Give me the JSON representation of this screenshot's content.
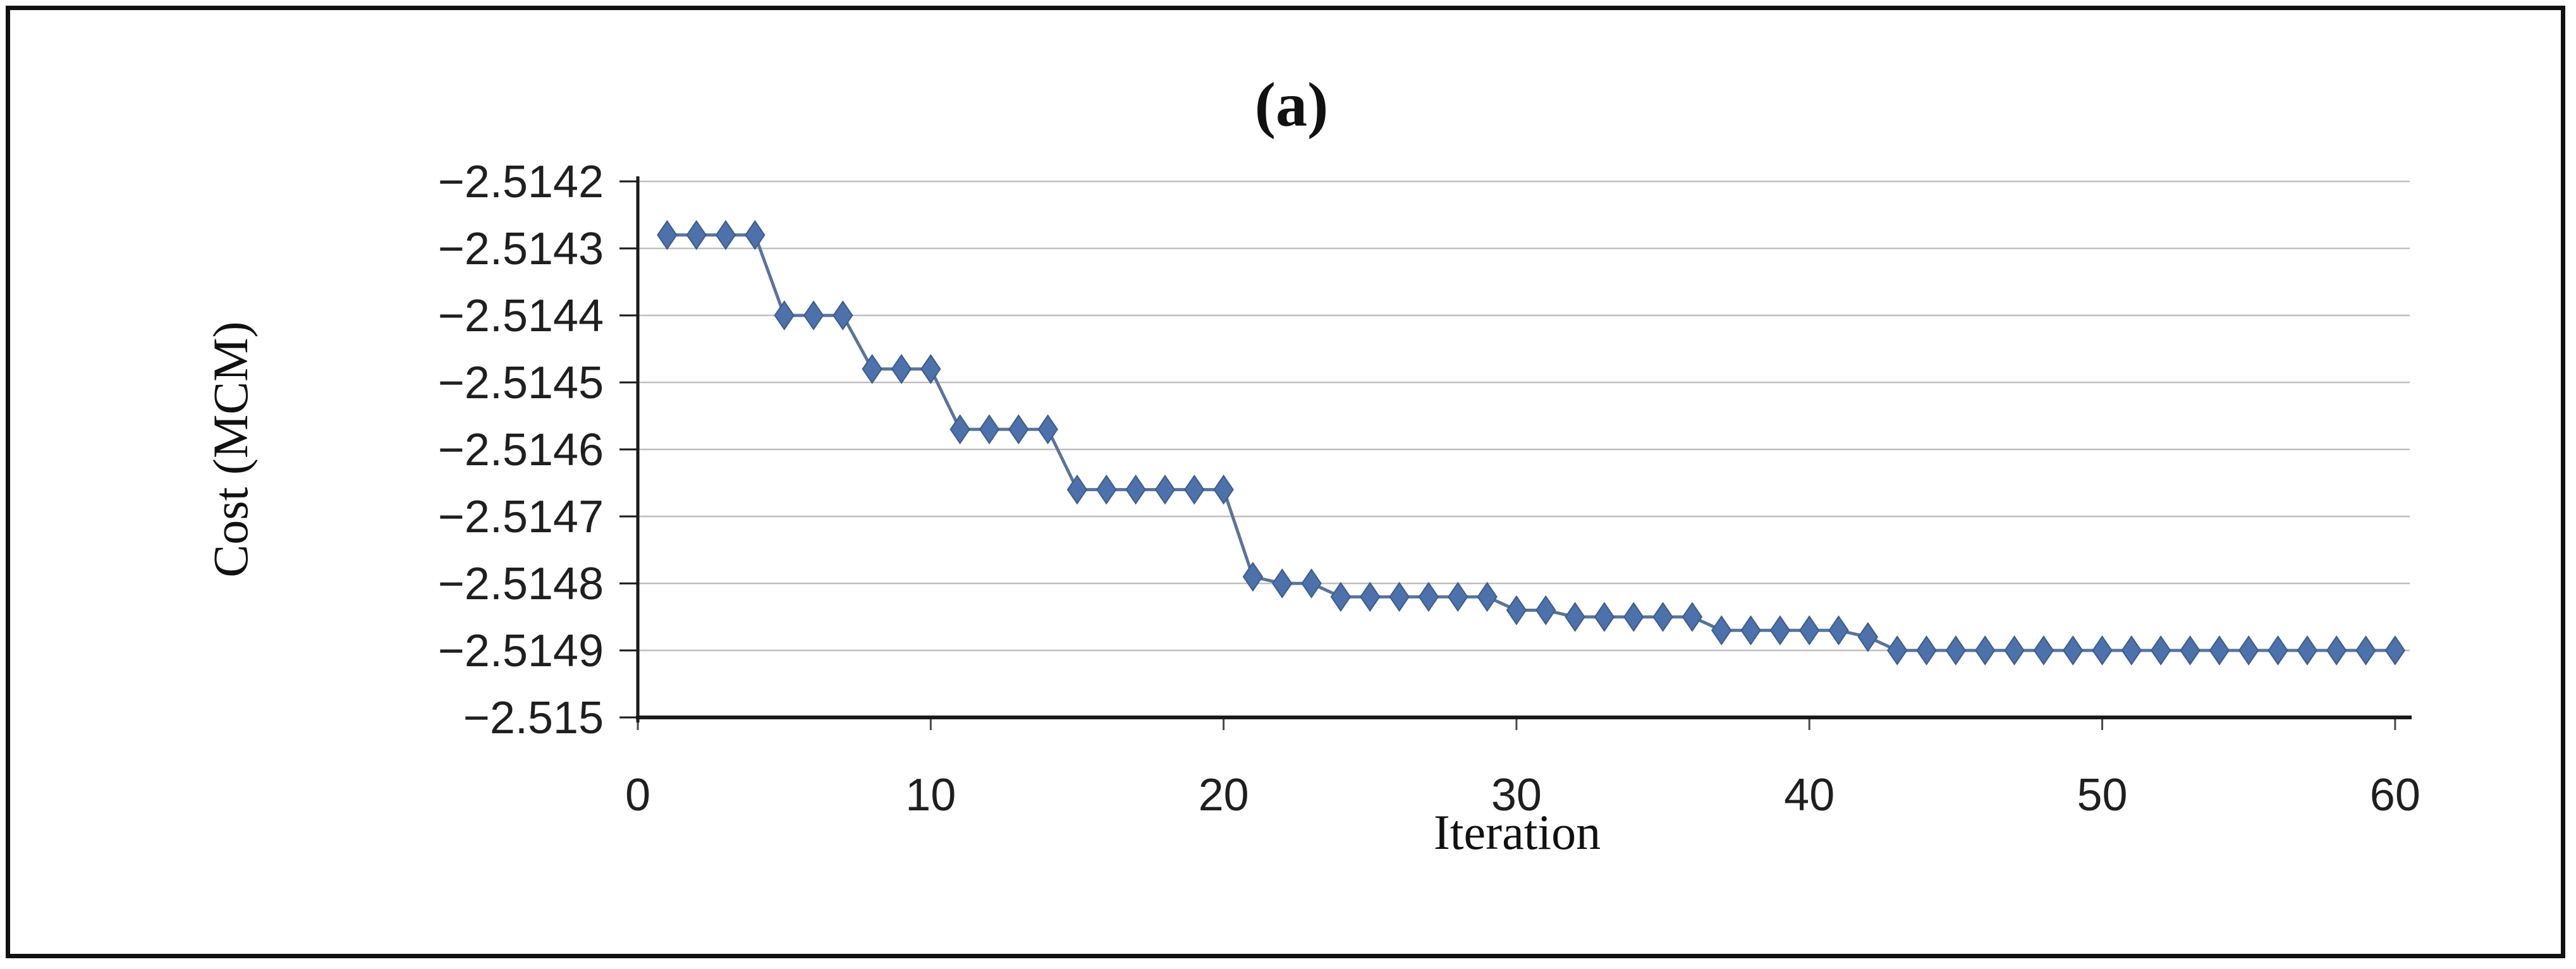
{
  "figure": {
    "title": "(a)",
    "xlabel": "Iteration",
    "ylabel": "Cost (MCM)"
  },
  "chart_data": {
    "type": "line",
    "title": "(a)",
    "xlabel": "Iteration",
    "ylabel": "Cost (MCM)",
    "series": [
      {
        "name": "Cost",
        "x": [
          1,
          2,
          3,
          4,
          5,
          6,
          7,
          8,
          9,
          10,
          11,
          12,
          13,
          14,
          15,
          16,
          17,
          18,
          19,
          20,
          21,
          22,
          23,
          24,
          25,
          26,
          27,
          28,
          29,
          30,
          31,
          32,
          33,
          34,
          35,
          36,
          37,
          38,
          39,
          40,
          41,
          42,
          43,
          44,
          45,
          46,
          47,
          48,
          49,
          50,
          51,
          52,
          53,
          54,
          55,
          56,
          57,
          58,
          59,
          60
        ],
        "y": [
          -2.51428,
          -2.51428,
          -2.51428,
          -2.51428,
          -2.5144,
          -2.5144,
          -2.5144,
          -2.51448,
          -2.51448,
          -2.51448,
          -2.51457,
          -2.51457,
          -2.51457,
          -2.51457,
          -2.51466,
          -2.51466,
          -2.51466,
          -2.51466,
          -2.51466,
          -2.51466,
          -2.51479,
          -2.5148,
          -2.5148,
          -2.51482,
          -2.51482,
          -2.51482,
          -2.51482,
          -2.51482,
          -2.51482,
          -2.51484,
          -2.51484,
          -2.51485,
          -2.51485,
          -2.51485,
          -2.51485,
          -2.51485,
          -2.51487,
          -2.51487,
          -2.51487,
          -2.51487,
          -2.51487,
          -2.51488,
          -2.5149,
          -2.5149,
          -2.5149,
          -2.5149,
          -2.5149,
          -2.5149,
          -2.5149,
          -2.5149,
          -2.5149,
          -2.5149,
          -2.5149,
          -2.5149,
          -2.5149,
          -2.5149,
          -2.5149,
          -2.5149,
          -2.5149,
          -2.5149
        ]
      }
    ],
    "xlim": [
      0,
      60.5
    ],
    "ylim": [
      -2.515,
      -2.5142
    ],
    "x_tick_values": [
      0,
      10,
      20,
      30,
      40,
      50,
      60
    ],
    "x_tick_labels": [
      "0",
      "10",
      "20",
      "30",
      "40",
      "50",
      "60"
    ],
    "y_tick_values": [
      -2.5142,
      -2.5143,
      -2.5144,
      -2.5145,
      -2.5146,
      -2.5147,
      -2.5148,
      -2.5149,
      -2.515
    ],
    "y_tick_labels": [
      "−2.5142",
      "−2.5143",
      "−2.5144",
      "−2.5145",
      "−2.5146",
      "−2.5147",
      "−2.5148",
      "−2.5149",
      "−2.515"
    ],
    "grid": true,
    "legend_position": "none",
    "marker": "diamond",
    "colors": {
      "marker_fill": "#4d71aa",
      "marker_stroke": "#3d5c8c",
      "line": "#5a7499",
      "grid": "#bfbfbf",
      "axis": "#1a1a1a",
      "frame": "#111111",
      "text": "#1f1f1f"
    }
  }
}
